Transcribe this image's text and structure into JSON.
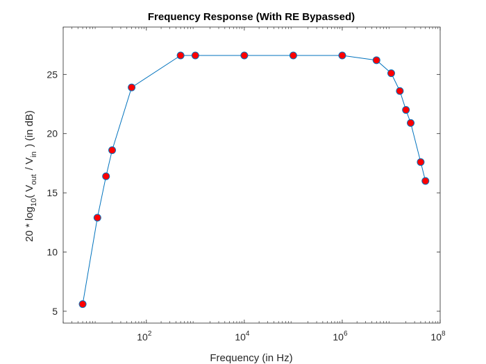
{
  "chart_data": {
    "type": "line",
    "title": "Frequency Response (With RE Bypassed)",
    "xlabel": "Frequency (in Hz)",
    "ylabel": {
      "prefix": "20 * log",
      "log_base": "10",
      "open": "( V",
      "out_sub": "out",
      "mid": "/ V",
      "in_sub": "in",
      "suffix": ") (in dB)"
    },
    "xscale": "log",
    "xlim": [
      2,
      100000000
    ],
    "ylim": [
      4,
      29
    ],
    "xticks": [
      {
        "value": 100,
        "base": "10",
        "exp": "2"
      },
      {
        "value": 10000,
        "base": "10",
        "exp": "4"
      },
      {
        "value": 1000000,
        "base": "10",
        "exp": "6"
      },
      {
        "value": 100000000,
        "base": "10",
        "exp": "8"
      }
    ],
    "yticks": [
      5,
      10,
      15,
      20,
      25
    ],
    "grid": false,
    "line_color": "#0072BD",
    "marker_fill": "#ff0000",
    "marker_edge": "#0072BD",
    "x": [
      5,
      10,
      15,
      20,
      50,
      500,
      1000,
      10000,
      100000,
      1000000,
      5000000,
      10000000,
      15000000,
      20000000,
      25000000,
      40000000,
      50000000
    ],
    "y": [
      5.6,
      12.9,
      16.4,
      18.6,
      23.9,
      26.6,
      26.6,
      26.6,
      26.6,
      26.6,
      26.2,
      25.1,
      23.6,
      22.0,
      20.9,
      17.6,
      16.0
    ]
  }
}
